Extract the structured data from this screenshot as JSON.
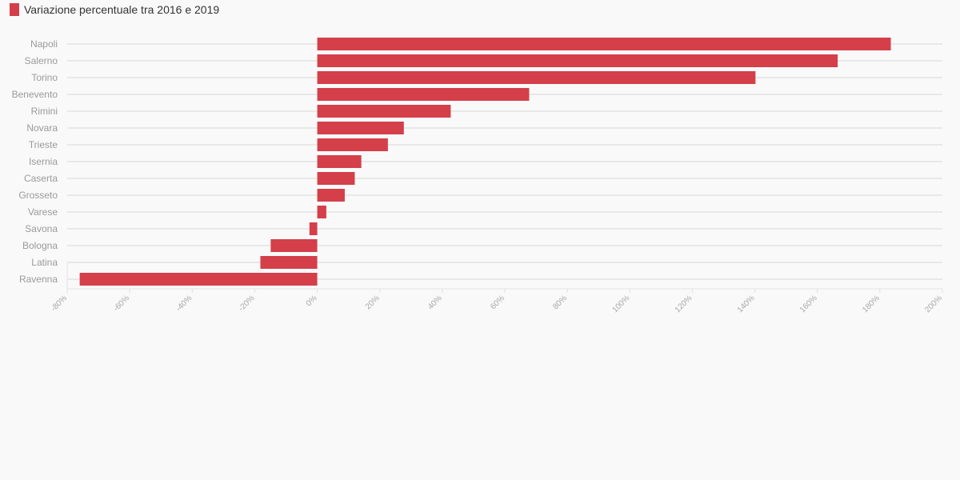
{
  "chart_data": {
    "type": "bar",
    "orientation": "horizontal",
    "legend": {
      "label": "Variazione percentuale tra 2016 e 2019",
      "position": "top-left"
    },
    "categories": [
      "Napoli",
      "Salerno",
      "Torino",
      "Benevento",
      "Rimini",
      "Novara",
      "Trieste",
      "Isernia",
      "Caserta",
      "Grosseto",
      "Varese",
      "Savona",
      "Bologna",
      "Latina",
      "Ravenna"
    ],
    "series": [
      {
        "name": "Variazione percentuale tra 2016 e 2019",
        "color": "#d43f4a",
        "values": [
          183.5,
          166.5,
          140.2,
          67.8,
          42.7,
          27.7,
          22.6,
          14.1,
          12.0,
          8.8,
          2.9,
          -2.5,
          -14.9,
          -18.2,
          -76.0
        ]
      }
    ],
    "xlim": [
      -80,
      200
    ],
    "xticks": [
      "-80%",
      "-60%",
      "-40%",
      "-20%",
      "0%",
      "20%",
      "40%",
      "60%",
      "80%",
      "100%",
      "120%",
      "140%",
      "160%",
      "180%",
      "200%"
    ],
    "grid": true
  }
}
